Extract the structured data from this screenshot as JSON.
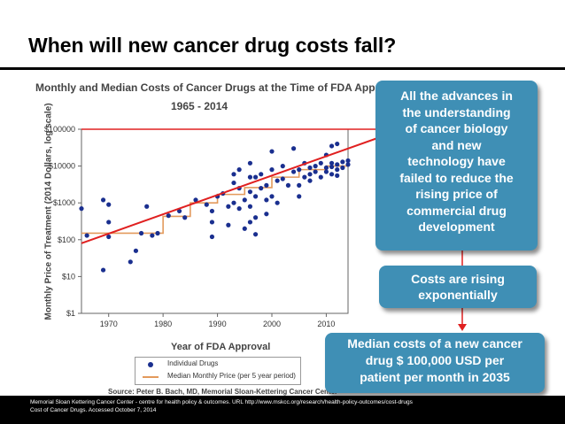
{
  "slide": {
    "title": "When will new cancer drug costs fall?",
    "footer_line1": "Memorial Sloan Kettering Cancer Center - centre for health policy & outcomes. URL http://www.mskcc.org/research/health-policy-outcomes/cost-drugs",
    "footer_line2": "Cost of Cancer Drugs. Accessed October 7, 2014"
  },
  "callouts": {
    "main_lines": [
      "All the advances in",
      "the understanding",
      "of cancer biology",
      "and new",
      "technology have",
      "failed to reduce the",
      "rising price of",
      "commercial drug",
      "development"
    ],
    "rising_lines": [
      "Costs are rising",
      "exponentially"
    ],
    "median_lines": [
      "Median costs of a new cancer",
      "drug $ 100,000 USD per",
      "patient per month in 2035"
    ]
  },
  "chart_data": {
    "type": "scatter",
    "title": "Monthly and Median Costs of Cancer Drugs at the Time of FDA Approval",
    "subtitle": "1965 - 2014",
    "xlabel": "Year of FDA Approval",
    "ylabel": "Monthly Price of Treatment (2014 Dollars, log scale)",
    "log_y": true,
    "xlim": [
      1965,
      2014
    ],
    "ylim": [
      1,
      100000
    ],
    "x_ticks": [
      "1970",
      "1980",
      "1990",
      "2000",
      "2010"
    ],
    "y_ticks": [
      "$100000",
      "$10000",
      "$1000",
      "$100",
      "$10",
      "$1"
    ],
    "legend": [
      "Individual Drugs",
      "Median Monthly Price (per 5 year period)"
    ],
    "source": "Source: Peter B. Bach, MD, Memorial Sloan-Kettering Cancer Center",
    "series": [
      {
        "name": "Individual Drugs",
        "points": [
          [
            1965,
            700
          ],
          [
            1966,
            130
          ],
          [
            1969,
            1200
          ],
          [
            1969,
            15
          ],
          [
            1970,
            900
          ],
          [
            1970,
            300
          ],
          [
            1970,
            120
          ],
          [
            1974,
            25
          ],
          [
            1975,
            50
          ],
          [
            1976,
            150
          ],
          [
            1977,
            800
          ],
          [
            1978,
            130
          ],
          [
            1979,
            150
          ],
          [
            1981,
            450
          ],
          [
            1983,
            600
          ],
          [
            1984,
            400
          ],
          [
            1986,
            1200
          ],
          [
            1988,
            900
          ],
          [
            1989,
            600
          ],
          [
            1989,
            300
          ],
          [
            1989,
            120
          ],
          [
            1990,
            1500
          ],
          [
            1991,
            1800
          ],
          [
            1992,
            800
          ],
          [
            1992,
            250
          ],
          [
            1993,
            6000
          ],
          [
            1993,
            3500
          ],
          [
            1993,
            1000
          ],
          [
            1994,
            8000
          ],
          [
            1994,
            2500
          ],
          [
            1994,
            700
          ],
          [
            1995,
            1200
          ],
          [
            1995,
            200
          ],
          [
            1996,
            12000
          ],
          [
            1996,
            5000
          ],
          [
            1996,
            2000
          ],
          [
            1996,
            800
          ],
          [
            1996,
            300
          ],
          [
            1997,
            5000
          ],
          [
            1997,
            1500
          ],
          [
            1997,
            400
          ],
          [
            1997,
            140
          ],
          [
            1998,
            6000
          ],
          [
            1998,
            2500
          ],
          [
            1999,
            3000
          ],
          [
            1999,
            1200
          ],
          [
            1999,
            500
          ],
          [
            2000,
            25000
          ],
          [
            2000,
            8000
          ],
          [
            2000,
            1500
          ],
          [
            2001,
            4000
          ],
          [
            2001,
            1000
          ],
          [
            2002,
            10000
          ],
          [
            2002,
            4500
          ],
          [
            2003,
            3000
          ],
          [
            2004,
            30000
          ],
          [
            2004,
            7000
          ],
          [
            2005,
            8000
          ],
          [
            2005,
            3000
          ],
          [
            2005,
            1500
          ],
          [
            2006,
            12000
          ],
          [
            2006,
            5000
          ],
          [
            2007,
            9000
          ],
          [
            2007,
            6000
          ],
          [
            2007,
            4000
          ],
          [
            2008,
            10000
          ],
          [
            2008,
            7000
          ],
          [
            2009,
            12000
          ],
          [
            2009,
            5000
          ],
          [
            2010,
            20000
          ],
          [
            2010,
            9000
          ],
          [
            2010,
            7000
          ],
          [
            2011,
            35000
          ],
          [
            2011,
            12000
          ],
          [
            2011,
            6000
          ],
          [
            2012,
            40000
          ],
          [
            2012,
            11000
          ],
          [
            2012,
            8000
          ],
          [
            2013,
            13000
          ],
          [
            2013,
            9000
          ],
          [
            2014,
            11000
          ],
          [
            2014,
            14000
          ],
          [
            2011,
            9500
          ],
          [
            2012,
            5500
          ]
        ]
      },
      {
        "name": "Median Monthly Price (per 5 year period)",
        "steps": [
          [
            1965,
            1970,
            150
          ],
          [
            1970,
            1980,
            150
          ],
          [
            1980,
            1985,
            430
          ],
          [
            1985,
            1990,
            1000
          ],
          [
            1990,
            1995,
            1700
          ],
          [
            1995,
            2000,
            2600
          ],
          [
            2000,
            2005,
            5000
          ],
          [
            2005,
            2010,
            8000
          ],
          [
            2010,
            2014,
            10000
          ]
        ]
      }
    ],
    "trend_start": [
      1965,
      80
    ],
    "trend_end": [
      2024,
      100000
    ],
    "reference_level": 100000,
    "colors": {
      "points": "#1a2f8f",
      "median": "#e39a5c",
      "trend": "#e02020",
      "reference": "#e02020",
      "arrow": "#e02020"
    }
  }
}
